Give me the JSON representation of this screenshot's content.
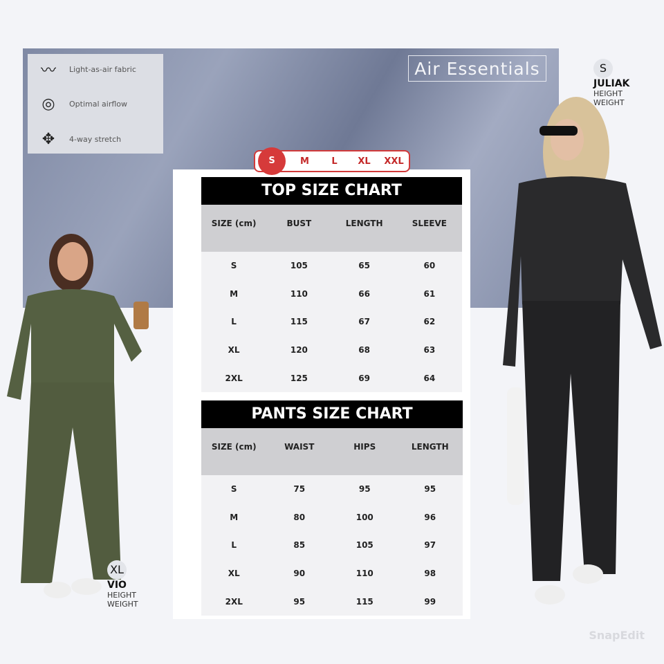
{
  "brand": "Air Essentials",
  "features": [
    {
      "icon": "feather-icon",
      "label": "Light-as-air fabric"
    },
    {
      "icon": "airflow-icon",
      "label": "Optimal airflow"
    },
    {
      "icon": "stretch-icon",
      "label": "4-way stretch"
    }
  ],
  "size_selector": {
    "options": [
      "S",
      "M",
      "L",
      "XL",
      "XXL"
    ],
    "selected": "S",
    "accent": "#d63a3a"
  },
  "top_chart": {
    "title": "TOP SIZE CHART",
    "headers": [
      "SIZE (cm)",
      "BUST",
      "LENGTH",
      "SLEEVE"
    ],
    "rows": [
      [
        "S",
        "105",
        "65",
        "60"
      ],
      [
        "M",
        "110",
        "66",
        "61"
      ],
      [
        "L",
        "115",
        "67",
        "62"
      ],
      [
        "XL",
        "120",
        "68",
        "63"
      ],
      [
        "2XL",
        "125",
        "69",
        "64"
      ]
    ]
  },
  "pants_chart": {
    "title": "PANTS SIZE CHART",
    "headers": [
      "SIZE (cm)",
      "WAIST",
      "HIPS",
      "LENGTH"
    ],
    "rows": [
      [
        "S",
        "75",
        "95",
        "95"
      ],
      [
        "M",
        "80",
        "100",
        "96"
      ],
      [
        "L",
        "85",
        "105",
        "97"
      ],
      [
        "XL",
        "90",
        "110",
        "98"
      ],
      [
        "2XL",
        "95",
        "115",
        "99"
      ]
    ]
  },
  "model_right": {
    "size": "S",
    "name": "JULIAK",
    "line1": "HEIGHT",
    "line2": "WEIGHT"
  },
  "model_left": {
    "size": "XL",
    "name": "VIO",
    "line1": "HEIGHT",
    "line2": "WEIGHT"
  },
  "watermark": "SnapEdit"
}
